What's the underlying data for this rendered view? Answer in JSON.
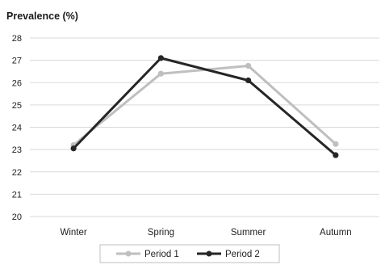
{
  "chart_data": {
    "type": "line",
    "ylabel": "Prevalence (%)",
    "categories": [
      "Winter",
      "Spring",
      "Summer",
      "Autumn"
    ],
    "ylim": [
      20,
      28
    ],
    "yticks": [
      "20",
      "21",
      "22",
      "23",
      "24",
      "25",
      "26",
      "27",
      "28"
    ],
    "grid": true,
    "legend_position": "bottom",
    "series": [
      {
        "name": "Period 1",
        "values": [
          23.2,
          26.4,
          26.75,
          23.25
        ],
        "color": "#bfbfbf"
      },
      {
        "name": "Period 2",
        "values": [
          23.05,
          27.1,
          26.1,
          22.75
        ],
        "color": "#262626"
      }
    ]
  }
}
